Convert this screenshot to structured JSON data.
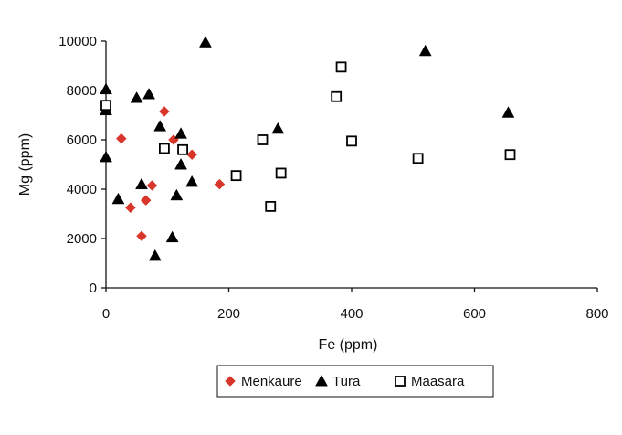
{
  "chart_data": {
    "type": "scatter",
    "title": "",
    "xlabel": "Fe (ppm)",
    "ylabel": "Mg (ppm)",
    "xlim": [
      0,
      800
    ],
    "ylim": [
      0,
      10000
    ],
    "x_ticks": [
      0,
      200,
      400,
      600,
      800
    ],
    "y_ticks": [
      0,
      2000,
      4000,
      6000,
      8000,
      10000
    ],
    "x_tick_labels": [
      "0",
      "200",
      "400",
      "600",
      "800"
    ],
    "y_tick_labels": [
      "0",
      "2000",
      "4000",
      "6000",
      "8000",
      "10000"
    ],
    "grid": false,
    "legend_position": "bottom",
    "series": [
      {
        "name": "Menkaure",
        "marker": "diamond",
        "color": "#d9362b",
        "points": [
          {
            "x": 25,
            "y": 6050
          },
          {
            "x": 40,
            "y": 3250
          },
          {
            "x": 58,
            "y": 2100
          },
          {
            "x": 65,
            "y": 3550
          },
          {
            "x": 75,
            "y": 4150
          },
          {
            "x": 95,
            "y": 7150
          },
          {
            "x": 110,
            "y": 6000
          },
          {
            "x": 140,
            "y": 5400
          },
          {
            "x": 185,
            "y": 4200
          }
        ]
      },
      {
        "name": "Tura",
        "marker": "triangle",
        "color": "#000000",
        "points": [
          {
            "x": 0,
            "y": 8050
          },
          {
            "x": 0,
            "y": 7200
          },
          {
            "x": 0,
            "y": 5300
          },
          {
            "x": 20,
            "y": 3600
          },
          {
            "x": 50,
            "y": 7700
          },
          {
            "x": 58,
            "y": 4200
          },
          {
            "x": 70,
            "y": 7850
          },
          {
            "x": 80,
            "y": 1300
          },
          {
            "x": 88,
            "y": 6550
          },
          {
            "x": 108,
            "y": 2050
          },
          {
            "x": 115,
            "y": 3750
          },
          {
            "x": 122,
            "y": 6250
          },
          {
            "x": 122,
            "y": 5000
          },
          {
            "x": 140,
            "y": 4300
          },
          {
            "x": 162,
            "y": 9950
          },
          {
            "x": 280,
            "y": 6450
          },
          {
            "x": 520,
            "y": 9600
          },
          {
            "x": 655,
            "y": 7100
          }
        ]
      },
      {
        "name": "Maasara",
        "marker": "square-open",
        "color": "#000000",
        "points": [
          {
            "x": 0,
            "y": 7400
          },
          {
            "x": 95,
            "y": 5650
          },
          {
            "x": 125,
            "y": 5600
          },
          {
            "x": 212,
            "y": 4550
          },
          {
            "x": 255,
            "y": 6000
          },
          {
            "x": 268,
            "y": 3300
          },
          {
            "x": 285,
            "y": 4650
          },
          {
            "x": 375,
            "y": 7750
          },
          {
            "x": 383,
            "y": 8950
          },
          {
            "x": 400,
            "y": 5950
          },
          {
            "x": 508,
            "y": 5250
          },
          {
            "x": 658,
            "y": 5400
          }
        ]
      }
    ]
  }
}
